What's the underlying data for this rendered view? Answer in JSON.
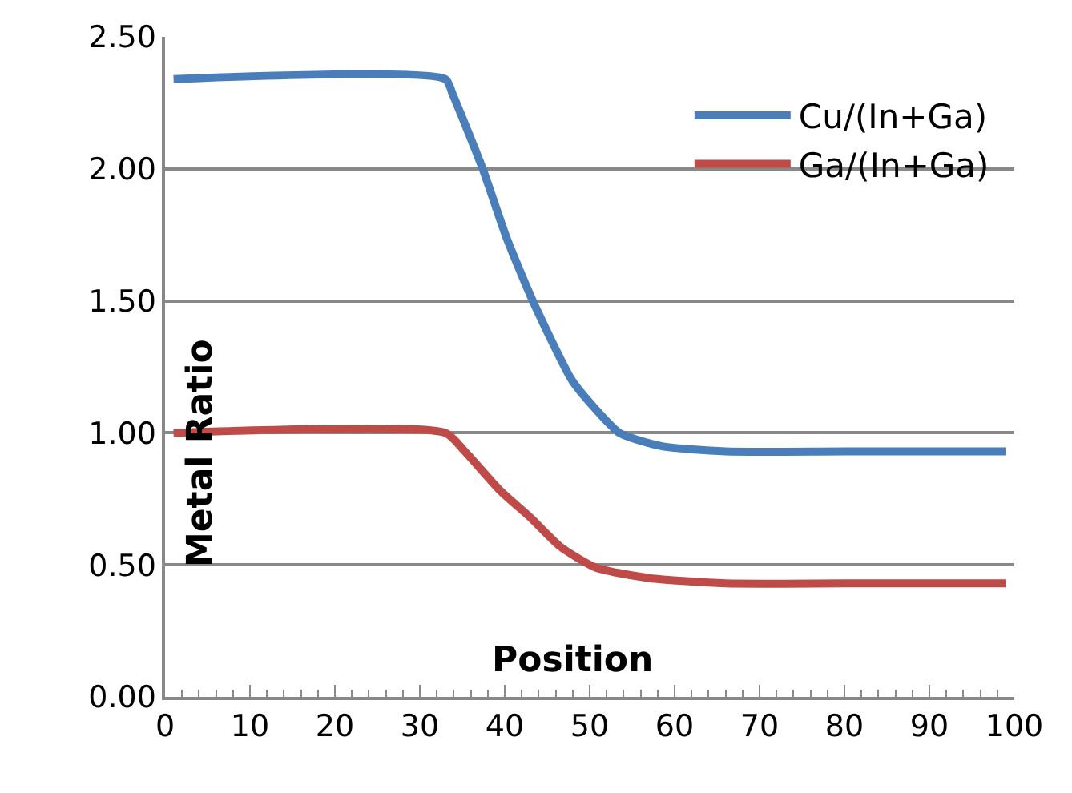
{
  "chart_data": {
    "type": "line",
    "xlabel": "Position",
    "ylabel": "Metal Ratio",
    "xlim": [
      0,
      100
    ],
    "xticks": [
      0,
      10,
      20,
      30,
      40,
      50,
      60,
      70,
      80,
      90,
      100
    ],
    "ylim": [
      0,
      2.5
    ],
    "yticks": [
      {
        "value": 0,
        "label": "0.00"
      },
      {
        "value": 0.5,
        "label": "0.50"
      },
      {
        "value": 1,
        "label": "1.00"
      },
      {
        "value": 1.5,
        "label": "1.50"
      },
      {
        "value": 2,
        "label": "2.00"
      },
      {
        "value": 2.5,
        "label": "2.50"
      }
    ],
    "grid": "y",
    "legend": "top right",
    "marker": "none",
    "line_style": "solid",
    "series": [
      {
        "name": "Cu/(In+Ga)",
        "color": "#4a7ebb",
        "x": [
          1,
          33,
          33.9,
          37.4,
          40.2,
          43.3,
          47.9,
          50.7,
          53.5,
          58.4,
          66,
          80,
          99
        ],
        "values": [
          2.34,
          2.34,
          2.28,
          2.0,
          1.74,
          1.5,
          1.2,
          1.09,
          1.0,
          0.95,
          0.93,
          0.93,
          0.93
        ]
      },
      {
        "name": "Ga/(In+Ga)",
        "color": "#be4b48",
        "x": [
          1,
          33,
          35.3,
          39.5,
          43,
          46.5,
          50.7,
          57,
          66,
          80,
          99
        ],
        "values": [
          1.0,
          1.0,
          0.93,
          0.78,
          0.68,
          0.57,
          0.49,
          0.45,
          0.43,
          0.43,
          0.43
        ]
      }
    ]
  }
}
